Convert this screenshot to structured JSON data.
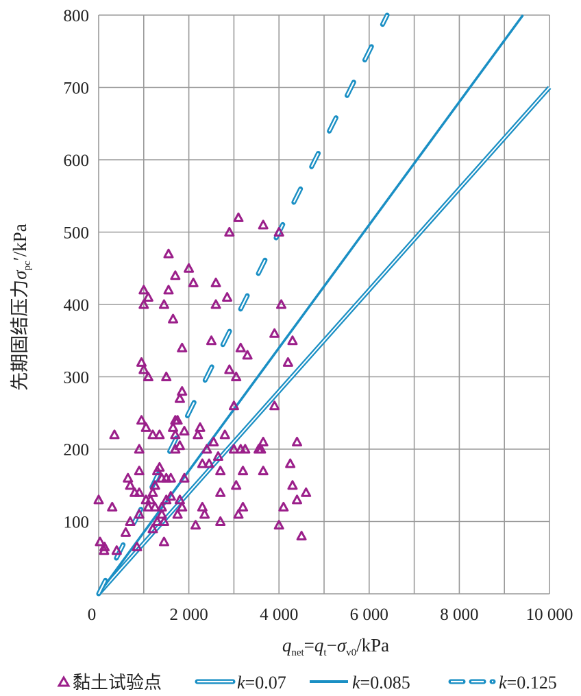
{
  "chart_data": {
    "type": "scatter",
    "xlabel": {
      "q": "q",
      "q_sub": "net",
      "eq": "=",
      "qt": "q",
      "qt_sub": "t",
      "minus": "−",
      "sigma": "σ",
      "sigma_sub": "v0",
      "unit": "/kPa"
    },
    "ylabel": {
      "prefix": "先期固结压力",
      "sigma": "σ",
      "sub": "pc",
      "unit": "′/kPa"
    },
    "xlim": [
      0,
      10000
    ],
    "ylim": [
      0,
      800
    ],
    "x_ticks": [
      {
        "value": 0,
        "label": "0"
      },
      {
        "value": 2000,
        "label": "2 000"
      },
      {
        "value": 4000,
        "label": "4 000"
      },
      {
        "value": 6000,
        "label": "6 000"
      },
      {
        "value": 8000,
        "label": "8 000"
      },
      {
        "value": 10000,
        "label": "10 000"
      }
    ],
    "y_ticks": [
      {
        "value": 100,
        "label": "100"
      },
      {
        "value": 200,
        "label": "200"
      },
      {
        "value": 300,
        "label": "300"
      },
      {
        "value": 400,
        "label": "400"
      },
      {
        "value": 500,
        "label": "500"
      },
      {
        "value": 600,
        "label": "600"
      },
      {
        "value": 700,
        "label": "700"
      },
      {
        "value": 800,
        "label": "800"
      }
    ],
    "grid": true,
    "legend": {
      "position": "bottom",
      "items": [
        {
          "label": "黏土试验点",
          "kind": "points"
        },
        {
          "k": "k",
          "label": "=0.07",
          "kind": "double-line"
        },
        {
          "k": "k",
          "label": "=0.085",
          "kind": "solid-line"
        },
        {
          "k": "k",
          "label": "=0.125",
          "kind": "dashed-line"
        }
      ]
    },
    "lines": [
      {
        "k": 0.07,
        "style": "double",
        "color": "#1a8fc4"
      },
      {
        "k": 0.085,
        "style": "solid",
        "color": "#1a8fc4"
      },
      {
        "k": 0.125,
        "style": "dashed",
        "color": "#1a8fc4"
      }
    ],
    "points_color": "#9b1f8a",
    "points": [
      [
        0,
        130
      ],
      [
        30,
        72
      ],
      [
        120,
        60
      ],
      [
        130,
        65
      ],
      [
        300,
        120
      ],
      [
        350,
        220
      ],
      [
        400,
        60
      ],
      [
        600,
        85
      ],
      [
        650,
        160
      ],
      [
        700,
        100
      ],
      [
        700,
        150
      ],
      [
        800,
        140
      ],
      [
        850,
        65
      ],
      [
        900,
        110
      ],
      [
        900,
        140
      ],
      [
        900,
        170
      ],
      [
        900,
        200
      ],
      [
        950,
        240
      ],
      [
        950,
        320
      ],
      [
        1000,
        310
      ],
      [
        1000,
        400
      ],
      [
        1000,
        420
      ],
      [
        1050,
        230
      ],
      [
        1050,
        130
      ],
      [
        1100,
        120
      ],
      [
        1100,
        410
      ],
      [
        1100,
        300
      ],
      [
        1150,
        130
      ],
      [
        1200,
        140
      ],
      [
        1200,
        90
      ],
      [
        1200,
        220
      ],
      [
        1250,
        120
      ],
      [
        1250,
        150
      ],
      [
        1300,
        100
      ],
      [
        1300,
        170
      ],
      [
        1350,
        220
      ],
      [
        1350,
        175
      ],
      [
        1400,
        110
      ],
      [
        1400,
        160
      ],
      [
        1400,
        120
      ],
      [
        1450,
        400
      ],
      [
        1450,
        72
      ],
      [
        1450,
        100
      ],
      [
        1500,
        300
      ],
      [
        1500,
        160
      ],
      [
        1500,
        130
      ],
      [
        1550,
        470
      ],
      [
        1550,
        420
      ],
      [
        1600,
        135
      ],
      [
        1600,
        160
      ],
      [
        1650,
        380
      ],
      [
        1650,
        230
      ],
      [
        1700,
        440
      ],
      [
        1700,
        240
      ],
      [
        1700,
        200
      ],
      [
        1700,
        220
      ],
      [
        1750,
        240
      ],
      [
        1750,
        110
      ],
      [
        1800,
        270
      ],
      [
        1800,
        130
      ],
      [
        1800,
        205
      ],
      [
        1850,
        280
      ],
      [
        1850,
        340
      ],
      [
        1850,
        120
      ],
      [
        1900,
        225
      ],
      [
        1900,
        160
      ],
      [
        2000,
        450
      ],
      [
        2100,
        430
      ],
      [
        2150,
        95
      ],
      [
        2200,
        220
      ],
      [
        2250,
        230
      ],
      [
        2300,
        180
      ],
      [
        2300,
        120
      ],
      [
        2350,
        110
      ],
      [
        2400,
        200
      ],
      [
        2450,
        180
      ],
      [
        2500,
        350
      ],
      [
        2550,
        210
      ],
      [
        2600,
        430
      ],
      [
        2600,
        400
      ],
      [
        2650,
        190
      ],
      [
        2700,
        100
      ],
      [
        2700,
        140
      ],
      [
        2700,
        170
      ],
      [
        2800,
        220
      ],
      [
        2850,
        410
      ],
      [
        2900,
        310
      ],
      [
        2900,
        500
      ],
      [
        3000,
        260
      ],
      [
        3000,
        200
      ],
      [
        3050,
        300
      ],
      [
        3050,
        150
      ],
      [
        3100,
        520
      ],
      [
        3100,
        110
      ],
      [
        3150,
        200
      ],
      [
        3150,
        340
      ],
      [
        3200,
        170
      ],
      [
        3200,
        120
      ],
      [
        3250,
        200
      ],
      [
        3300,
        330
      ],
      [
        3550,
        200
      ],
      [
        3600,
        200
      ],
      [
        3650,
        510
      ],
      [
        3650,
        210
      ],
      [
        3650,
        170
      ],
      [
        3900,
        360
      ],
      [
        3900,
        260
      ],
      [
        4000,
        95
      ],
      [
        4000,
        500
      ],
      [
        4050,
        400
      ],
      [
        4100,
        120
      ],
      [
        4200,
        320
      ],
      [
        4250,
        180
      ],
      [
        4300,
        350
      ],
      [
        4300,
        150
      ],
      [
        4400,
        210
      ],
      [
        4400,
        130
      ],
      [
        4500,
        80
      ],
      [
        4600,
        140
      ]
    ]
  }
}
